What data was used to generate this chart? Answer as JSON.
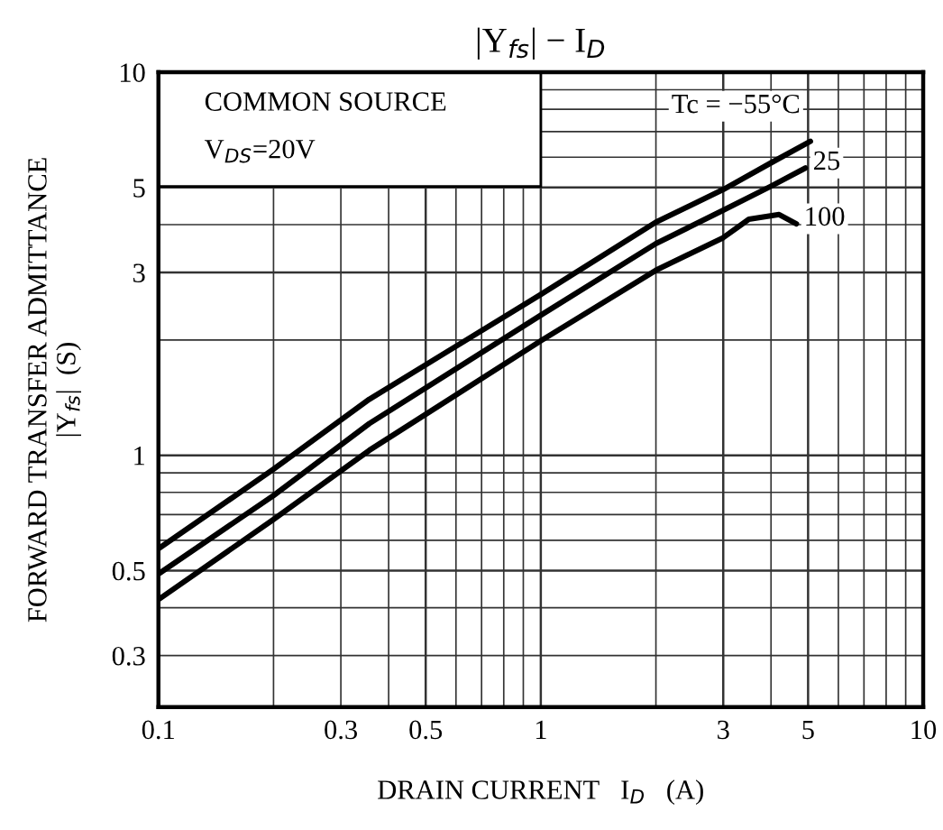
{
  "chart_data": {
    "type": "line",
    "title": "|Y$_{fs}$| − I$_{D}$",
    "xlabel": "DRAIN CURRENT   I$_{D}$   (A)",
    "ylabel": "FORWARD TRANSFER ADMITTANCE\n|Y$_{fs}$|  (S)",
    "annotations": [
      "COMMON SOURCE",
      "V$_{DS}$=20V"
    ],
    "log": "xy",
    "grid": true,
    "legend": false,
    "marker": "none",
    "line_style": "solid",
    "xlim": [
      0.1,
      10
    ],
    "xticks": [
      0.1,
      0.3,
      0.5,
      1,
      3,
      5,
      10
    ],
    "ylim": [
      0.22,
      10
    ],
    "yticks": [
      0.3,
      0.5,
      1,
      3,
      5,
      10
    ],
    "series": [
      {
        "name": "Tc = −55°C",
        "color": "#000000",
        "x": [
          0.1,
          0.2,
          0.356,
          1,
          2,
          3,
          4,
          5.07
        ],
        "values": [
          0.57,
          0.92,
          1.4,
          2.63,
          4.06,
          4.94,
          5.8,
          6.6
        ]
      },
      {
        "name": "25",
        "color": "#000000",
        "x": [
          0.1,
          0.2,
          0.356,
          1,
          2,
          3,
          4,
          4.92
        ],
        "values": [
          0.49,
          0.785,
          1.21,
          2.32,
          3.57,
          4.36,
          5.04,
          5.62
        ]
      },
      {
        "name": "100",
        "color": "#000000",
        "x": [
          0.1,
          0.2,
          0.356,
          1,
          2,
          3,
          3.5,
          4.2,
          4.66
        ],
        "values": [
          0.42,
          0.68,
          1.03,
          1.99,
          3.04,
          3.7,
          4.13,
          4.25,
          4.02
        ]
      }
    ]
  }
}
